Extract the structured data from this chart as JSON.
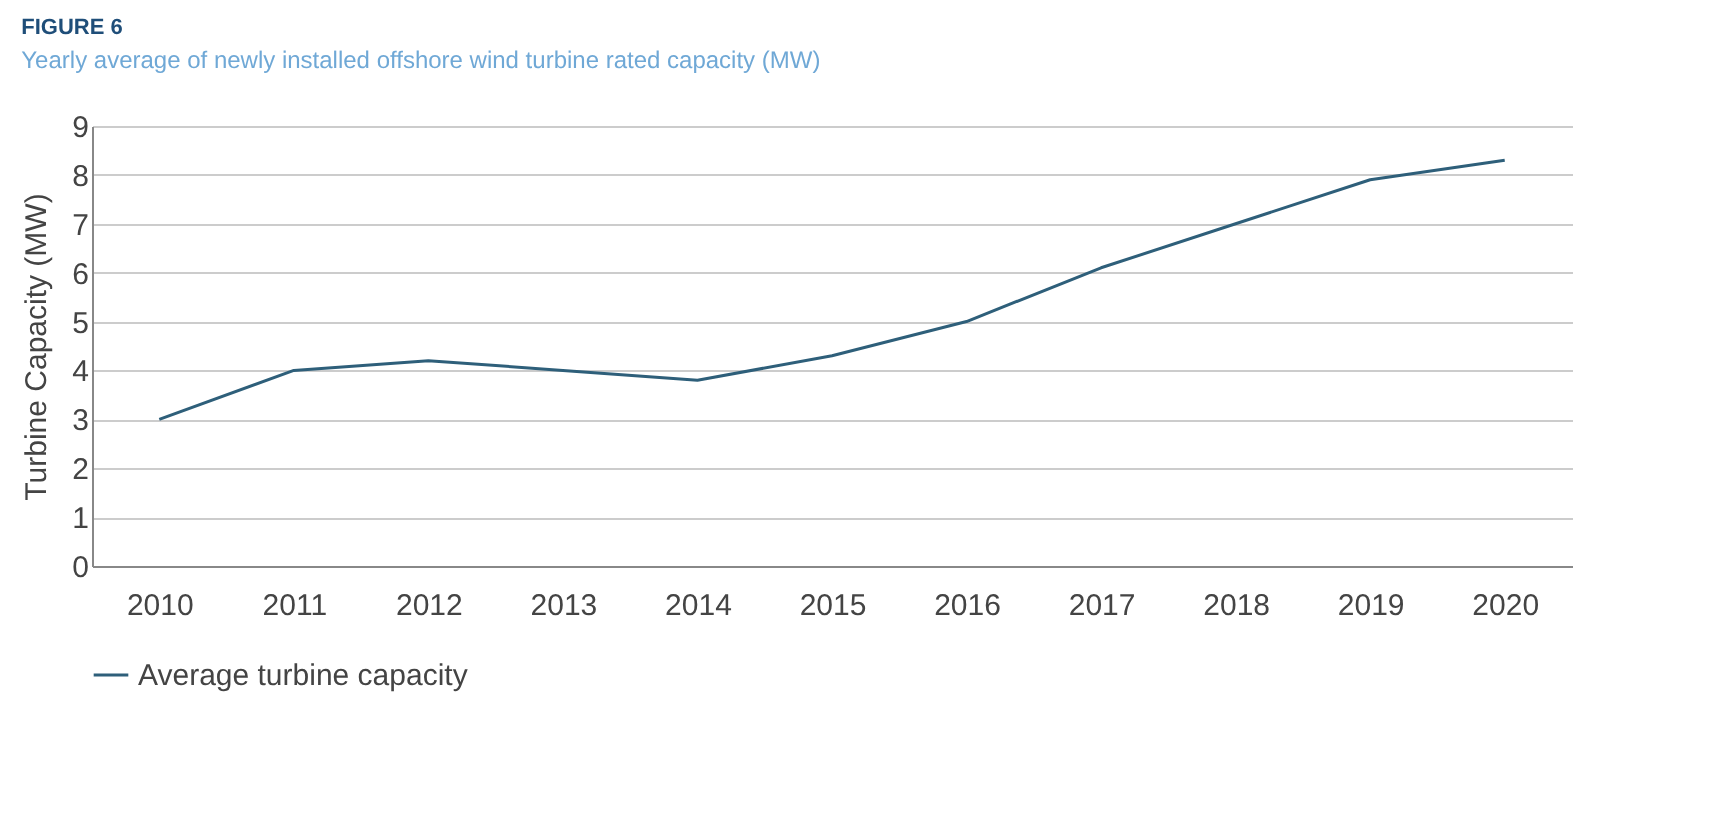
{
  "chart_data": {
    "type": "line",
    "title": "FIGURE 6",
    "subtitle": "Yearly average of newly installed offshore wind turbine rated capacity (MW)",
    "ylabel": "Turbine Capacity (MW)",
    "categories": [
      "2010",
      "2011",
      "2012",
      "2013",
      "2014",
      "2015",
      "2016",
      "2017",
      "2018",
      "2019",
      "2020"
    ],
    "series": [
      {
        "name": "Average turbine capacity",
        "color": "#2e5f7a",
        "values": [
          3.0,
          4.0,
          4.2,
          4.0,
          3.8,
          4.3,
          5.0,
          6.1,
          7.0,
          7.9,
          8.3
        ]
      }
    ],
    "ylim": [
      0,
      9
    ],
    "yticks": [
      0,
      1,
      2,
      3,
      4,
      5,
      6,
      7,
      8,
      9
    ],
    "grid": "y",
    "legend": "bottom",
    "marker": "none",
    "line_style": "solid"
  }
}
